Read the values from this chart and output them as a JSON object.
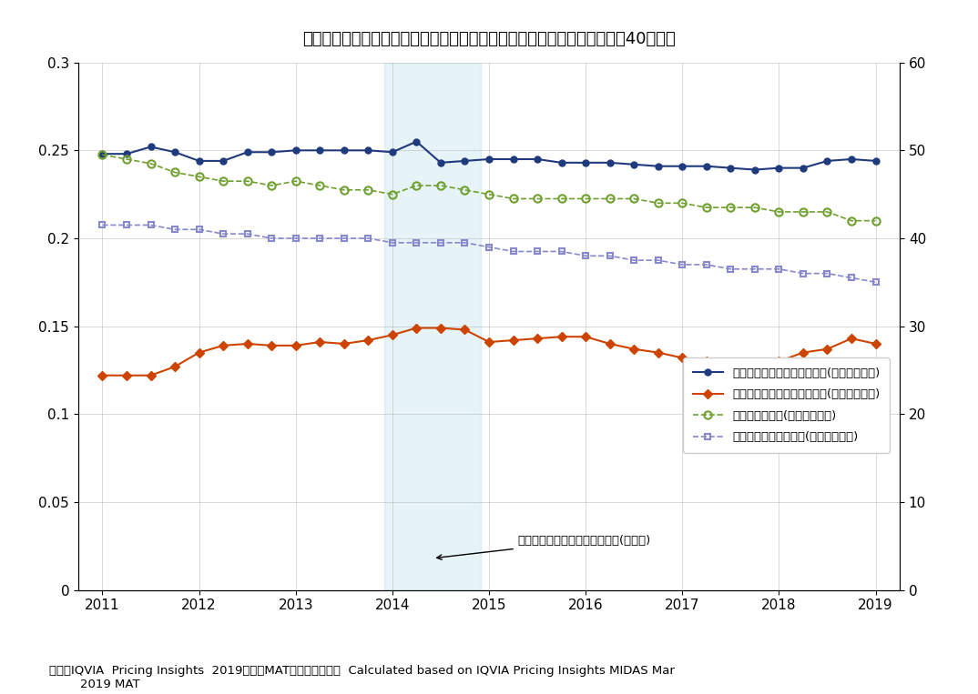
{
  "title": "参考図２　ドイツにおける価格プレミアムの推移（全期間データがとれる40成分）",
  "source_text": "出所：IQVIA  Pricing Insights  2019年３月MATをもとに作成／  Calculated based on IQVIA Pricing Insights MIDAS Mar\n        2019 MAT",
  "annotation_text": "既存比較薬の特許保護満了時期(平均値)",
  "highlight_xmin": 2013.917,
  "highlight_xmax": 2014.917,
  "blue_line": {
    "label": "新薬の価格プレミアム平均値(対数値、左軸)",
    "x": [
      2011.0,
      2011.25,
      2011.5,
      2011.75,
      2012.0,
      2012.25,
      2012.5,
      2012.75,
      2013.0,
      2013.25,
      2013.5,
      2013.75,
      2014.0,
      2014.25,
      2014.5,
      2014.75,
      2015.0,
      2015.25,
      2015.5,
      2015.75,
      2016.0,
      2016.25,
      2016.5,
      2016.75,
      2017.0,
      2017.25,
      2017.5,
      2017.75,
      2018.0,
      2018.25,
      2018.5,
      2018.75,
      2019.0
    ],
    "y": [
      0.248,
      0.248,
      0.252,
      0.249,
      0.244,
      0.244,
      0.249,
      0.249,
      0.25,
      0.25,
      0.25,
      0.25,
      0.249,
      0.255,
      0.243,
      0.244,
      0.245,
      0.245,
      0.245,
      0.243,
      0.243,
      0.243,
      0.242,
      0.241,
      0.241,
      0.241,
      0.24,
      0.239,
      0.24,
      0.24,
      0.244,
      0.245,
      0.244
    ],
    "color": "#1f3a7d",
    "marker": "o",
    "markersize": 5,
    "linewidth": 1.5
  },
  "orange_line": {
    "label": "新薬の価格プレミアム中央値(対数値、左軸)",
    "x": [
      2011.0,
      2011.25,
      2011.5,
      2011.75,
      2012.0,
      2012.25,
      2012.5,
      2012.75,
      2013.0,
      2013.25,
      2013.5,
      2013.75,
      2014.0,
      2014.25,
      2014.5,
      2014.75,
      2015.0,
      2015.25,
      2015.5,
      2015.75,
      2016.0,
      2016.25,
      2016.5,
      2016.75,
      2017.0,
      2017.25,
      2017.5,
      2017.75,
      2018.0,
      2018.25,
      2018.5,
      2018.75,
      2019.0
    ],
    "y": [
      0.122,
      0.122,
      0.122,
      0.127,
      0.135,
      0.139,
      0.14,
      0.139,
      0.139,
      0.141,
      0.14,
      0.142,
      0.145,
      0.149,
      0.149,
      0.148,
      0.141,
      0.142,
      0.143,
      0.144,
      0.144,
      0.14,
      0.137,
      0.135,
      0.132,
      0.13,
      0.129,
      0.129,
      0.13,
      0.135,
      0.137,
      0.143,
      0.14
    ],
    "color": "#cc4400",
    "marker": "D",
    "markersize": 5,
    "linewidth": 1.5
  },
  "green_line": {
    "label": "新薬の平均価格(米ドル、右軸)",
    "x": [
      2011.0,
      2011.25,
      2011.5,
      2011.75,
      2012.0,
      2012.25,
      2012.5,
      2012.75,
      2013.0,
      2013.25,
      2013.5,
      2013.75,
      2014.0,
      2014.25,
      2014.5,
      2014.75,
      2015.0,
      2015.25,
      2015.5,
      2015.75,
      2016.0,
      2016.25,
      2016.5,
      2016.75,
      2017.0,
      2017.25,
      2017.5,
      2017.75,
      2018.0,
      2018.25,
      2018.5,
      2018.75,
      2019.0
    ],
    "y": [
      49.5,
      49.0,
      48.5,
      47.5,
      47.0,
      46.5,
      46.5,
      46.0,
      46.5,
      46.0,
      45.5,
      45.5,
      45.0,
      46.0,
      46.0,
      45.5,
      45.0,
      44.5,
      44.5,
      44.5,
      44.5,
      44.5,
      44.5,
      44.0,
      44.0,
      43.5,
      43.5,
      43.5,
      43.0,
      43.0,
      43.0,
      42.0,
      42.0
    ],
    "color": "#70a030",
    "marker": "o",
    "markersize": 6,
    "linewidth": 1.2
  },
  "purple_line": {
    "label": "既存比較薬の平均価格(米ドル、右軸)",
    "x": [
      2011.0,
      2011.25,
      2011.5,
      2011.75,
      2012.0,
      2012.25,
      2012.5,
      2012.75,
      2013.0,
      2013.25,
      2013.5,
      2013.75,
      2014.0,
      2014.25,
      2014.5,
      2014.75,
      2015.0,
      2015.25,
      2015.5,
      2015.75,
      2016.0,
      2016.25,
      2016.5,
      2016.75,
      2017.0,
      2017.25,
      2017.5,
      2017.75,
      2018.0,
      2018.25,
      2018.5,
      2018.75,
      2019.0
    ],
    "y": [
      41.5,
      41.5,
      41.5,
      41.0,
      41.0,
      40.5,
      40.5,
      40.0,
      40.0,
      40.0,
      40.0,
      40.0,
      39.5,
      39.5,
      39.5,
      39.5,
      39.0,
      38.5,
      38.5,
      38.5,
      38.0,
      38.0,
      37.5,
      37.5,
      37.0,
      37.0,
      36.5,
      36.5,
      36.5,
      36.0,
      36.0,
      35.5,
      35.0
    ],
    "color": "#8888cc",
    "marker": "s",
    "markersize": 5,
    "linewidth": 1.2
  },
  "ylim_left": [
    0,
    0.3
  ],
  "ylim_right": [
    0,
    60
  ],
  "xlim": [
    2010.75,
    2019.25
  ],
  "xticks": [
    2011,
    2012,
    2013,
    2014,
    2015,
    2016,
    2017,
    2018,
    2019
  ],
  "yticks_left": [
    0,
    0.05,
    0.1,
    0.15,
    0.2,
    0.25,
    0.3
  ],
  "yticks_right": [
    0,
    10,
    20,
    30,
    40,
    50,
    60
  ],
  "background_color": "#ffffff",
  "grid_color": "#aaaaaa"
}
